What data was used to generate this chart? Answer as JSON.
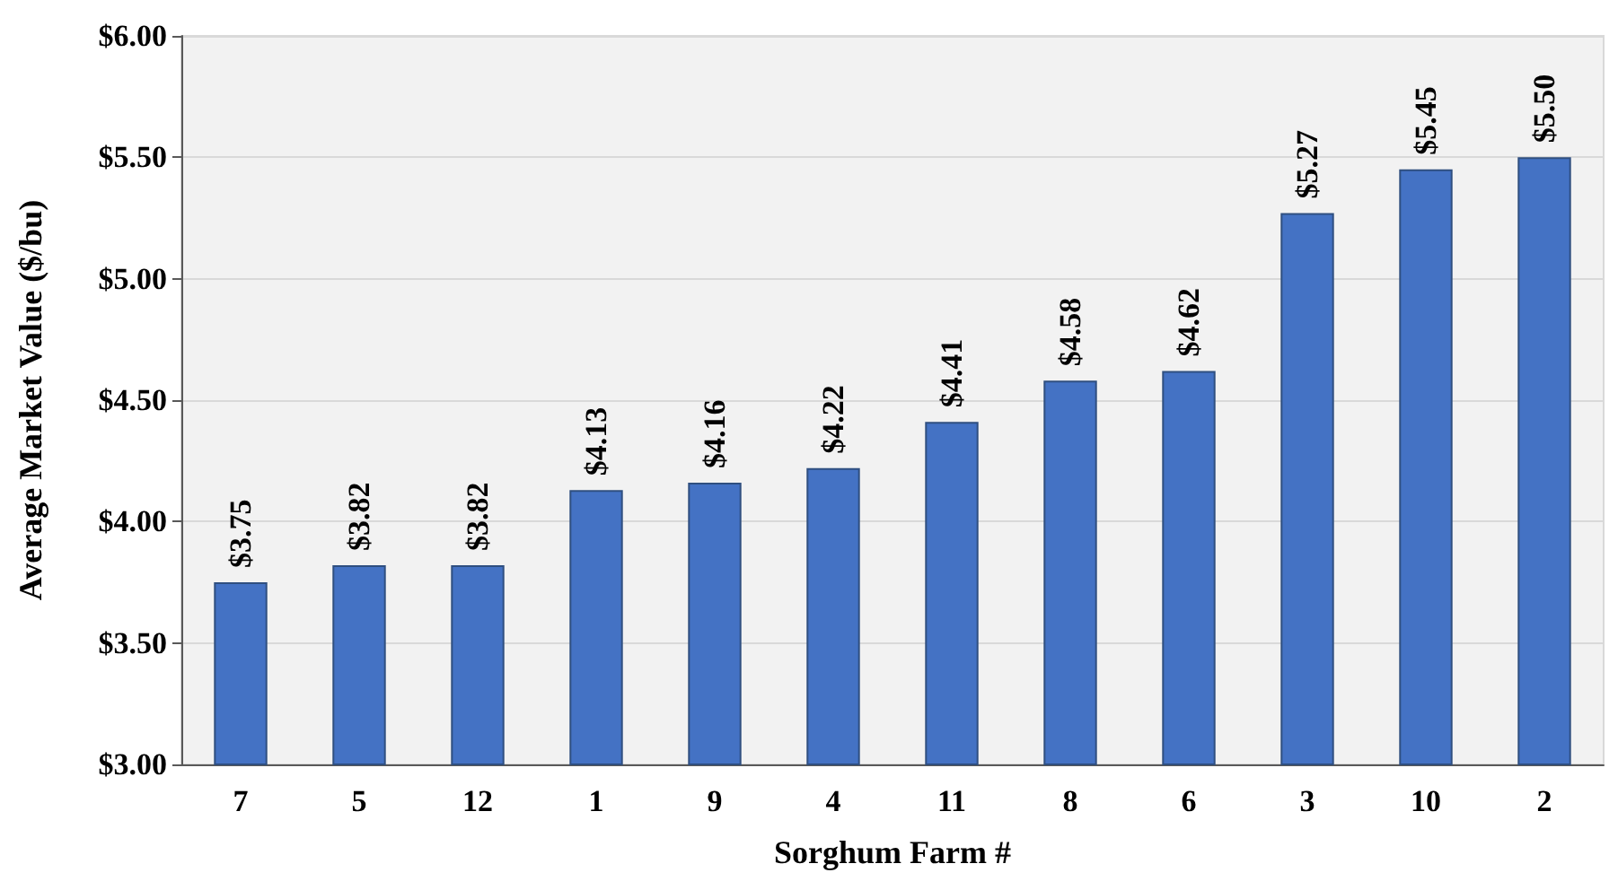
{
  "chart_data": {
    "type": "bar",
    "xlabel": "Sorghum Farm #",
    "ylabel": "Average Market Value ($/bu)",
    "categories": [
      "7",
      "5",
      "12",
      "1",
      "9",
      "4",
      "11",
      "8",
      "6",
      "3",
      "10",
      "2"
    ],
    "values": [
      3.75,
      3.82,
      3.82,
      4.13,
      4.16,
      4.22,
      4.41,
      4.58,
      4.62,
      5.27,
      5.45,
      5.5
    ],
    "value_labels": [
      "$3.75",
      "$3.82",
      "$3.82",
      "$4.13",
      "$4.16",
      "$4.22",
      "$4.41",
      "$4.58",
      "$4.62",
      "$5.27",
      "$5.45",
      "$5.50"
    ],
    "color": "#4472c4",
    "ylim": [
      3,
      6
    ],
    "yticks": [
      {
        "value": 3,
        "label": "$3.00"
      },
      {
        "value": 3.5,
        "label": "$3.50"
      },
      {
        "value": 4,
        "label": "$4.00"
      },
      {
        "value": 4.5,
        "label": "$4.50"
      },
      {
        "value": 5,
        "label": "$5.00"
      },
      {
        "value": 5.5,
        "label": "$5.50"
      },
      {
        "value": 6,
        "label": "$6.00"
      }
    ],
    "grid": "y"
  }
}
